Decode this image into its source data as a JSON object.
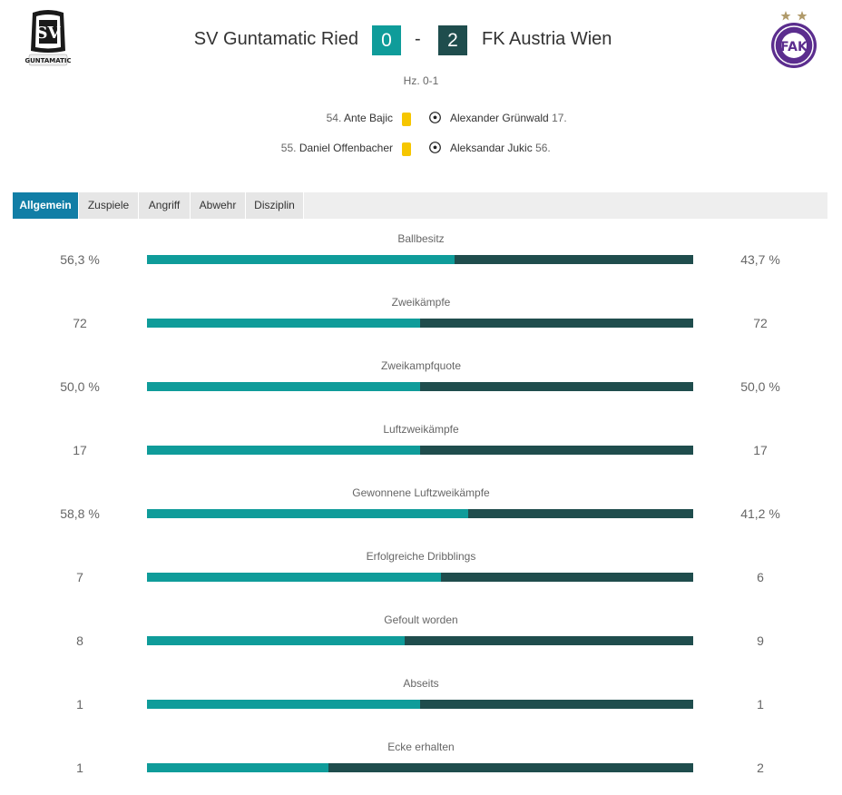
{
  "match": {
    "home_team": "SV Guntamatic Ried",
    "away_team": "FK Austria Wien",
    "home_score": "0",
    "away_score": "2",
    "separator": "-",
    "halftime": "Hz. 0-1",
    "home_logo_text": "GUNTAMATIC",
    "away_logo_text": "FAK"
  },
  "events": [
    {
      "minute": "54.",
      "player": "Ante Bajic",
      "side": "home",
      "type": "yellow-card"
    },
    {
      "minute": "17.",
      "player": "Alexander Grünwald",
      "side": "away",
      "type": "goal"
    },
    {
      "minute": "55.",
      "player": "Daniel Offenbacher",
      "side": "home",
      "type": "yellow-card"
    },
    {
      "minute": "56.",
      "player": "Aleksandar Jukic",
      "side": "away",
      "type": "goal"
    }
  ],
  "tabs": [
    {
      "label": "Allgemein",
      "active": true
    },
    {
      "label": "Zuspiele",
      "active": false
    },
    {
      "label": "Angriff",
      "active": false
    },
    {
      "label": "Abwehr",
      "active": false
    },
    {
      "label": "Disziplin",
      "active": false
    }
  ],
  "stats": [
    {
      "label": "Ballbesitz",
      "home": "56,3 %",
      "away": "43,7 %",
      "home_share": 0.563
    },
    {
      "label": "Zweikämpfe",
      "home": "72",
      "away": "72",
      "home_share": 0.5
    },
    {
      "label": "Zweikampfquote",
      "home": "50,0 %",
      "away": "50,0 %",
      "home_share": 0.5
    },
    {
      "label": "Luftzweikämpfe",
      "home": "17",
      "away": "17",
      "home_share": 0.5
    },
    {
      "label": "Gewonnene Luftzweikämpfe",
      "home": "58,8 %",
      "away": "41,2 %",
      "home_share": 0.588
    },
    {
      "label": "Erfolgreiche Dribblings",
      "home": "7",
      "away": "6",
      "home_share": 0.538
    },
    {
      "label": "Gefoult worden",
      "home": "8",
      "away": "9",
      "home_share": 0.471
    },
    {
      "label": "Abseits",
      "home": "1",
      "away": "1",
      "home_share": 0.5
    },
    {
      "label": "Ecke erhalten",
      "home": "1",
      "away": "2",
      "home_share": 0.333
    }
  ],
  "colors": {
    "home_bar": "#0f9c9a",
    "away_bar": "#1f4d4d",
    "active_tab": "#117ea6",
    "yellow_card": "#f6c600",
    "away_brand": "#5b2d8e"
  }
}
